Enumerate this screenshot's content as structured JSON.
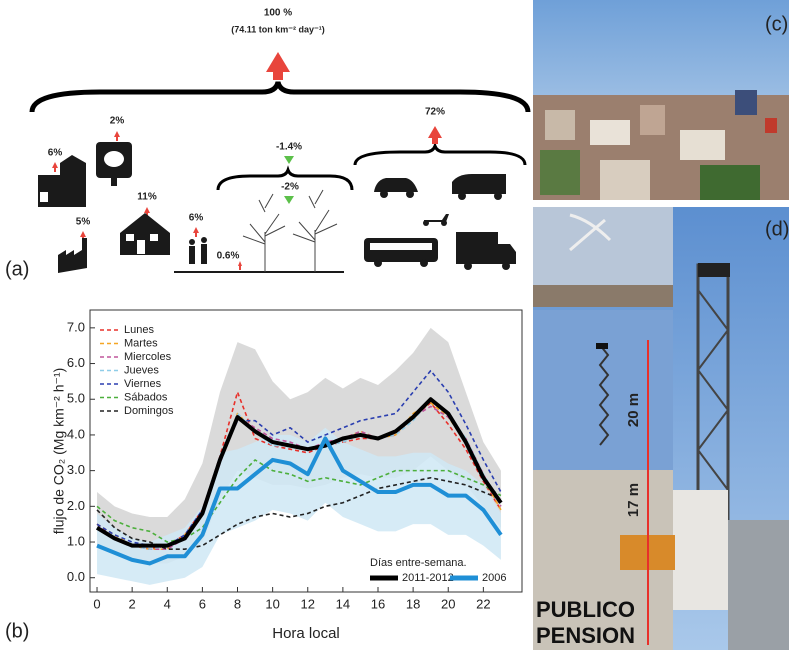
{
  "panel_labels": [
    "(a)",
    "(b)",
    "(c)",
    "(d)"
  ],
  "diagram": {
    "total": "100 %",
    "total_detail": "(74.11 ton km⁻² day⁻¹)",
    "shares": [
      "6%",
      "2%",
      "11%",
      "5%",
      "6%",
      "0.6%",
      "-1.4%",
      "-2%",
      "72%"
    ]
  },
  "photo": {
    "height_upper": "20 m",
    "height_lower": "17 m",
    "signs": [
      "PUBLICO",
      "PENSION"
    ]
  },
  "chart_data": {
    "type": "line",
    "ylabel": "flujo de CO₂ (Mg km⁻² h⁻¹)",
    "xlabel": "Hora local",
    "legend_title": "Días entre-semana.",
    "x": [
      0,
      1,
      2,
      3,
      4,
      5,
      6,
      7,
      8,
      9,
      10,
      11,
      12,
      13,
      14,
      15,
      16,
      17,
      18,
      19,
      20,
      21,
      22,
      23
    ],
    "xlim": [
      -0.4,
      24.2
    ],
    "ylim": [
      -0.4,
      7.5
    ],
    "xticks": [
      0,
      2,
      4,
      6,
      8,
      10,
      12,
      14,
      16,
      18,
      20,
      22
    ],
    "yticks": [
      {
        "value": 0,
        "label": "0.0"
      },
      {
        "value": 1,
        "label": "1.0"
      },
      {
        "value": 2,
        "label": "2.0"
      },
      {
        "value": 3,
        "label": "3.0"
      },
      {
        "value": 4,
        "label": "4.0"
      },
      {
        "value": 5,
        "label": "5.0"
      },
      {
        "value": 6,
        "label": "6.0"
      },
      {
        "value": 7,
        "label": "7.0"
      }
    ],
    "bands": [
      {
        "color": "#d4d4d4",
        "lower": [
          0.9,
          0.7,
          0.5,
          0.4,
          0.4,
          0.6,
          1.0,
          2.2,
          3.0,
          2.8,
          2.6,
          2.6,
          2.5,
          2.6,
          2.8,
          2.9,
          2.8,
          2.8,
          3.0,
          3.4,
          3.0,
          2.6,
          2.0,
          1.4
        ],
        "upper": [
          2.4,
          2.0,
          1.8,
          1.7,
          1.7,
          2.2,
          3.2,
          5.2,
          6.6,
          6.4,
          5.5,
          5.0,
          5.2,
          5.6,
          5.3,
          5.6,
          5.4,
          5.8,
          6.3,
          7.0,
          6.6,
          5.2,
          3.8,
          3.0
        ]
      },
      {
        "color": "#cfe8f5",
        "lower": [
          0.1,
          0.0,
          -0.1,
          -0.2,
          -0.1,
          0.0,
          0.3,
          1.2,
          1.4,
          1.6,
          1.9,
          1.8,
          1.6,
          2.1,
          1.7,
          1.5,
          1.3,
          1.3,
          1.5,
          1.5,
          1.2,
          1.2,
          0.9,
          0.5
        ],
        "upper": [
          1.8,
          1.4,
          1.1,
          1.0,
          1.2,
          1.4,
          2.0,
          3.5,
          3.6,
          3.8,
          4.0,
          4.0,
          3.8,
          4.2,
          3.8,
          3.6,
          3.4,
          3.4,
          3.5,
          3.5,
          3.2,
          3.0,
          2.6,
          1.8
        ]
      }
    ],
    "series": [
      {
        "name": "Lunes",
        "color": "#e8302a",
        "style": "dashed",
        "values": [
          1.5,
          1.1,
          0.9,
          0.8,
          0.9,
          1.2,
          1.9,
          3.4,
          5.2,
          3.9,
          3.7,
          3.6,
          3.5,
          3.7,
          3.8,
          3.9,
          3.9,
          4.0,
          4.5,
          4.9,
          4.3,
          3.6,
          2.7,
          1.9
        ]
      },
      {
        "name": "Martes",
        "color": "#f5a623",
        "style": "dashed",
        "values": [
          1.5,
          1.2,
          0.9,
          0.8,
          0.8,
          1.2,
          1.8,
          3.3,
          4.6,
          4.1,
          3.8,
          3.7,
          3.6,
          3.7,
          3.9,
          4.1,
          3.9,
          4.0,
          4.6,
          4.9,
          4.5,
          3.8,
          2.8,
          1.9
        ]
      },
      {
        "name": "Miercoles",
        "color": "#c0569c",
        "style": "dashed",
        "values": [
          1.4,
          1.1,
          0.9,
          0.8,
          0.8,
          1.1,
          1.8,
          3.2,
          4.5,
          4.2,
          3.9,
          3.8,
          3.6,
          3.8,
          3.9,
          4.1,
          3.9,
          4.1,
          4.5,
          4.8,
          4.5,
          3.9,
          2.9,
          2.0
        ]
      },
      {
        "name": "Jueves",
        "color": "#8fcde8",
        "style": "dashed",
        "values": [
          1.4,
          1.1,
          0.9,
          0.8,
          0.9,
          1.1,
          1.8,
          3.3,
          4.6,
          4.1,
          3.7,
          3.7,
          3.6,
          3.7,
          3.8,
          4.0,
          3.9,
          4.0,
          4.4,
          5.0,
          4.6,
          3.9,
          2.9,
          2.1
        ]
      },
      {
        "name": "Viernes",
        "color": "#2b3fb0",
        "style": "dashed",
        "values": [
          1.5,
          1.2,
          1.0,
          0.9,
          0.9,
          1.2,
          1.9,
          3.3,
          4.4,
          4.4,
          4.0,
          4.2,
          3.8,
          4.0,
          4.2,
          4.4,
          4.5,
          4.6,
          5.2,
          5.8,
          5.2,
          4.3,
          3.3,
          2.4
        ]
      },
      {
        "name": "Sábados",
        "color": "#4caf3c",
        "style": "dashed",
        "values": [
          2.0,
          1.6,
          1.4,
          1.3,
          1.0,
          1.1,
          1.4,
          2.1,
          2.8,
          3.3,
          3.0,
          2.9,
          2.7,
          2.8,
          2.7,
          2.6,
          2.8,
          3.0,
          3.0,
          3.0,
          3.0,
          2.8,
          2.6,
          2.3
        ]
      },
      {
        "name": "Domingos",
        "color": "#222222",
        "style": "dashed",
        "values": [
          1.9,
          1.4,
          1.1,
          1.0,
          0.8,
          0.8,
          0.9,
          1.2,
          1.5,
          1.7,
          1.8,
          1.7,
          1.8,
          2.0,
          2.1,
          2.3,
          2.5,
          2.6,
          2.7,
          2.8,
          2.7,
          2.6,
          2.4,
          2.2
        ]
      },
      {
        "name": "2011-2012",
        "color": "#000000",
        "style": "solid",
        "values": [
          1.4,
          1.1,
          0.9,
          0.9,
          0.9,
          1.1,
          1.8,
          3.3,
          4.5,
          4.1,
          3.8,
          3.7,
          3.6,
          3.7,
          3.9,
          4.0,
          3.9,
          4.1,
          4.5,
          5.0,
          4.6,
          3.8,
          2.8,
          2.1
        ]
      },
      {
        "name": "2006",
        "color": "#1f8fd6",
        "style": "solid",
        "values": [
          0.9,
          0.7,
          0.5,
          0.4,
          0.6,
          0.6,
          1.2,
          2.5,
          2.5,
          2.9,
          3.3,
          3.2,
          2.9,
          3.9,
          3.0,
          2.7,
          2.4,
          2.4,
          2.6,
          2.6,
          2.3,
          2.3,
          1.9,
          1.2
        ]
      }
    ]
  }
}
